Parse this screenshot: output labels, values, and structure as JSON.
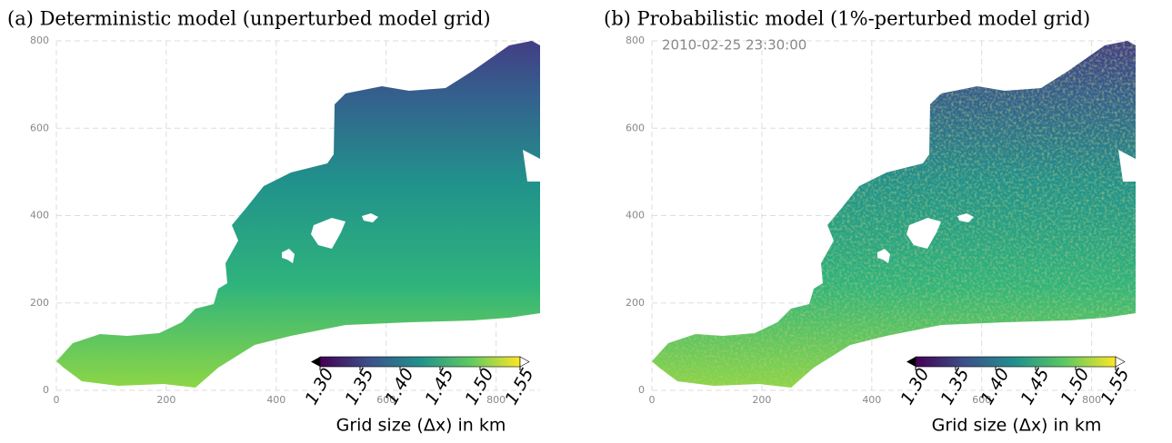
{
  "chart_data": [
    {
      "type": "heatmap",
      "title": "(a) Deterministic model (unperturbed model grid)",
      "xlim": [
        0,
        880
      ],
      "ylim": [
        0,
        800
      ],
      "xticks": [
        0,
        200,
        400,
        600,
        800
      ],
      "yticks": [
        0,
        200,
        400,
        600,
        800
      ],
      "grid": true,
      "colormap": "viridis",
      "clim": [
        1.3,
        1.55
      ],
      "colorbar_label": "Grid size (Δx) in km",
      "colorbar_ticks": [
        {
          "value": 1.3,
          "label": "1.30"
        },
        {
          "value": 1.35,
          "label": "1.35"
        },
        {
          "value": 1.4,
          "label": "1.40"
        },
        {
          "value": 1.45,
          "label": "1.45"
        },
        {
          "value": 1.5,
          "label": "1.50"
        },
        {
          "value": 1.55,
          "label": "1.55"
        }
      ]
    },
    {
      "type": "heatmap",
      "title": "(b) Probabilistic model (1%-perturbed model grid)",
      "annotation": "2010-02-25 23:30:00",
      "xlim": [
        0,
        880
      ],
      "ylim": [
        0,
        800
      ],
      "xticks": [
        0,
        200,
        400,
        600,
        800
      ],
      "yticks": [
        0,
        200,
        400,
        600,
        800
      ],
      "grid": true,
      "colormap": "viridis",
      "clim": [
        1.3,
        1.55
      ],
      "colorbar_label": "Grid size (Δx) in km",
      "colorbar_ticks": [
        {
          "value": 1.3,
          "label": "1.30"
        },
        {
          "value": 1.35,
          "label": "1.35"
        },
        {
          "value": 1.4,
          "label": "1.40"
        },
        {
          "value": 1.45,
          "label": "1.45"
        },
        {
          "value": 1.5,
          "label": "1.50"
        },
        {
          "value": 1.55,
          "label": "1.55"
        }
      ]
    }
  ]
}
